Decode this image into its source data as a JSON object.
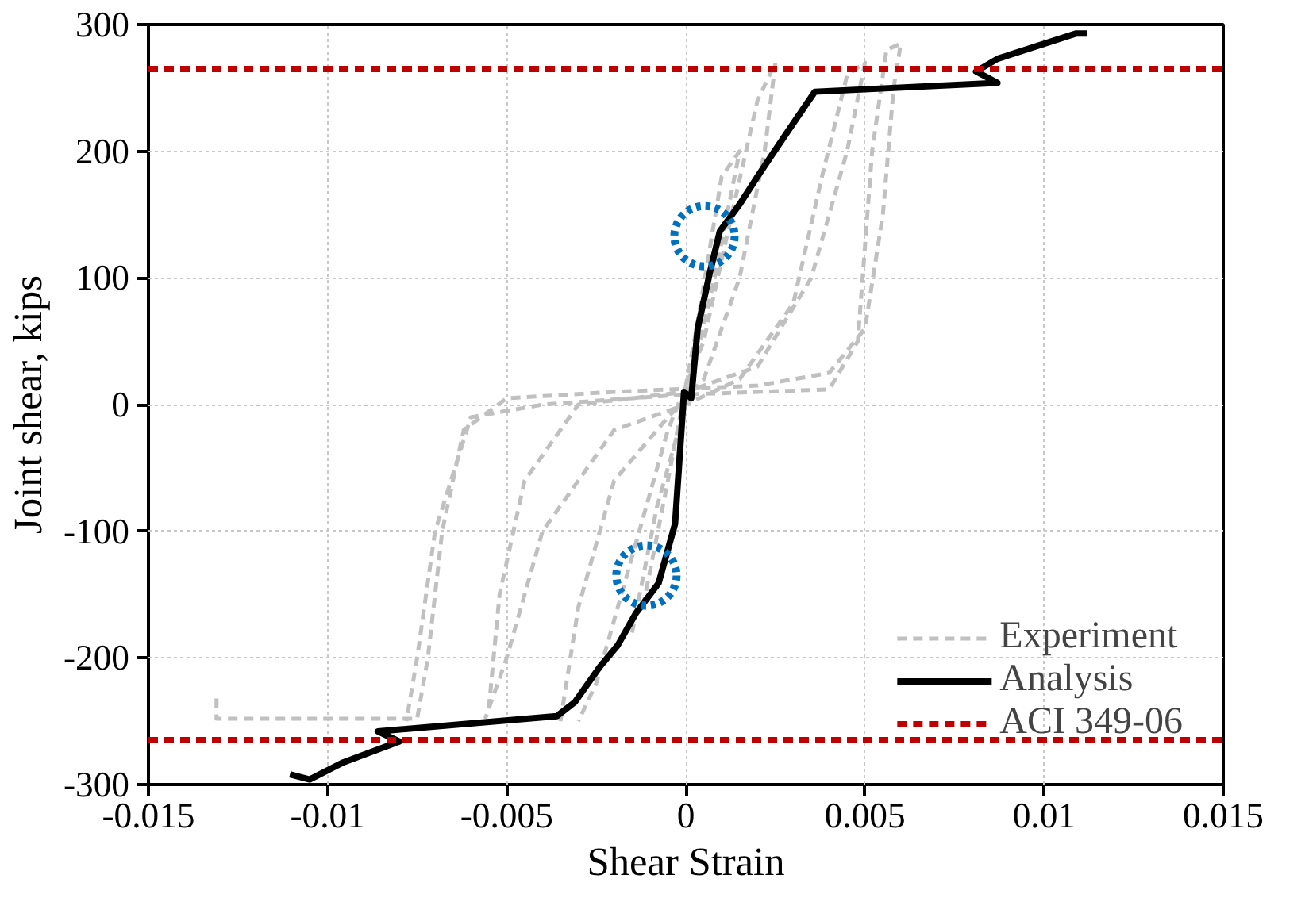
{
  "chart_data": {
    "type": "line",
    "xlabel": "Shear Strain",
    "ylabel": "Joint shear, kips",
    "xlim": [
      -0.015,
      0.015
    ],
    "ylim": [
      -300,
      300
    ],
    "xticks": [
      -0.015,
      -0.01,
      -0.005,
      0,
      0.005,
      0.01,
      0.015
    ],
    "yticks": [
      -300,
      -200,
      -100,
      0,
      100,
      200,
      300
    ],
    "grid": true,
    "legend": "bottom right",
    "marker": "none",
    "series": [
      {
        "name": "Experiment",
        "color": "#c0c0c0",
        "line_style": "dashed",
        "x": [
          -0.0131,
          -0.0131,
          -0.0075,
          -0.0072,
          -0.0068,
          -0.0062,
          -0.005,
          -0.002,
          0.002,
          0.004,
          0.005,
          0.0055,
          0.0058,
          0.006,
          0.0056,
          0.0052,
          0.0048,
          0.004,
          0.0,
          -0.004,
          -0.006,
          -0.007,
          -0.0075,
          -0.0078,
          null,
          -0.0055,
          -0.0052,
          -0.0045,
          -0.003,
          0.0,
          0.002,
          0.0035,
          0.0045,
          0.005,
          0.0045,
          0.0038,
          0.003,
          0.0015,
          0.0,
          -0.002,
          -0.004,
          -0.005,
          -0.0056,
          null,
          -0.0035,
          -0.003,
          -0.002,
          -0.0005,
          0.0005,
          0.0015,
          0.0022,
          0.0025,
          0.002,
          0.0012,
          0.0005,
          -0.0005,
          -0.0015,
          -0.0025,
          -0.003,
          null,
          -0.0015,
          -0.0008,
          0.0,
          0.0008,
          0.0015,
          0.001,
          0.0003,
          -0.0005,
          -0.0012
        ],
        "values": [
          -232,
          -248,
          -248,
          -200,
          -100,
          -20,
          5,
          10,
          15,
          25,
          60,
          150,
          250,
          285,
          280,
          200,
          50,
          12,
          8,
          0,
          -10,
          -100,
          -200,
          -250,
          null,
          -240,
          -150,
          -60,
          0,
          10,
          30,
          100,
          200,
          270,
          260,
          180,
          80,
          20,
          0,
          -20,
          -100,
          -200,
          -248,
          null,
          -250,
          -160,
          -60,
          -10,
          20,
          100,
          200,
          270,
          240,
          140,
          50,
          -20,
          -120,
          -220,
          -250,
          null,
          -180,
          -80,
          0,
          100,
          200,
          180,
          60,
          -60,
          -160
        ]
      },
      {
        "name": "Analysis",
        "color": "#000000",
        "line_style": "solid",
        "x": [
          -0.01105,
          -0.0105,
          -0.0096,
          -0.008,
          -0.0086,
          -0.0036,
          -0.0031,
          -0.0024,
          -0.0019,
          -0.0014,
          -0.00076,
          -0.0003,
          -5e-05,
          0.00015,
          0.00033,
          0.00067,
          0.00095,
          0.0015,
          0.002,
          0.0024,
          0.0029,
          0.0036,
          0.0087,
          0.0081,
          0.0087,
          0.0109,
          0.0112
        ],
        "values": [
          -292,
          -296,
          -283,
          -266,
          -258,
          -246,
          -235,
          -207,
          -190,
          -165,
          -141,
          -94,
          10,
          5,
          60,
          104,
          137,
          158,
          180,
          197,
          218,
          247,
          254,
          263,
          273,
          293,
          293
        ]
      },
      {
        "type": "scatter",
        "color": "#0070c0",
        "marker": "circle",
        "line_style": "dotted",
        "x": [
          0.00052,
          -0.0011
        ],
        "values": [
          133,
          -135
        ]
      }
    ],
    "ref_lines": [
      {
        "axis": "y",
        "value": 265,
        "label": "ACI 349-06",
        "color": "#c00000",
        "line_style": "dashed"
      },
      {
        "axis": "y",
        "value": -265,
        "color": "#c00000",
        "line_style": "dashed"
      }
    ]
  }
}
